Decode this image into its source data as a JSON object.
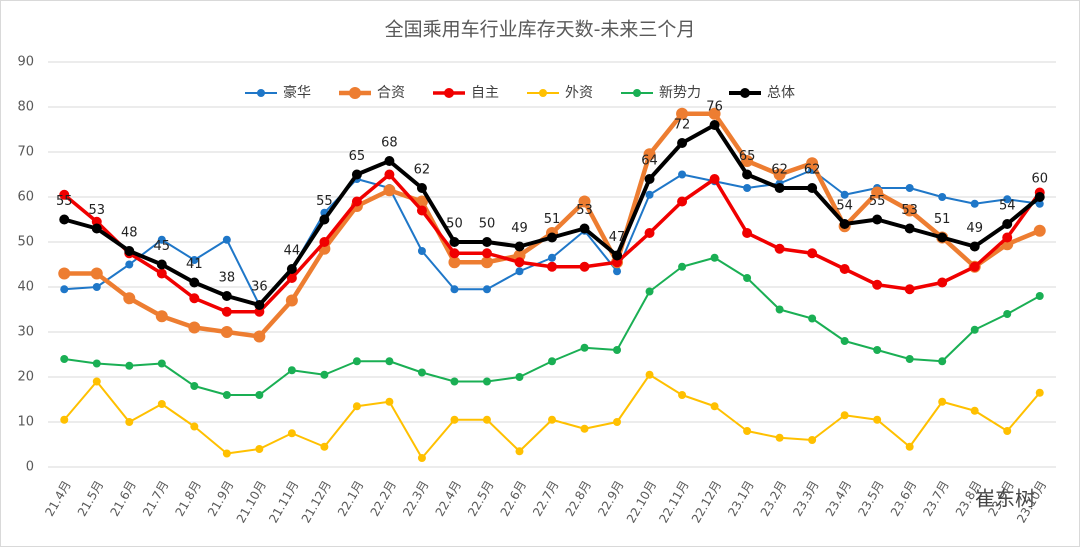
{
  "chart_data": {
    "type": "line",
    "title": "全国乘用车行业库存天数-未来三个月",
    "categories": [
      "21.4月",
      "21.5月",
      "21.6月",
      "21.7月",
      "21.8月",
      "21.9月",
      "21.10月",
      "21.11月",
      "21.12月",
      "22.1月",
      "22.2月",
      "22.3月",
      "22.4月",
      "22.5月",
      "22.6月",
      "22.7月",
      "22.8月",
      "22.9月",
      "22.10月",
      "22.11月",
      "22.12月",
      "23.1月",
      "23.2月",
      "23.3月",
      "23.4月",
      "23.5月",
      "23.6月",
      "23.7月",
      "23.8月",
      "23.9月",
      "23.10月"
    ],
    "series": [
      {
        "name": "豪华",
        "color": "#1f77c8",
        "width": 2,
        "marker": 4,
        "values": [
          39.5,
          40,
          45,
          50.5,
          46,
          50.5,
          36,
          44,
          56.5,
          64,
          62,
          48,
          39.5,
          39.5,
          43.5,
          46.5,
          52.5,
          43.5,
          60.5,
          65,
          63.5,
          62,
          63,
          66,
          60.5,
          62,
          62,
          60,
          58.5,
          59.5,
          58.5
        ]
      },
      {
        "name": "合资",
        "color": "#ed7d31",
        "width": 4.5,
        "marker": 6,
        "values": [
          43,
          43,
          37.5,
          33.5,
          31,
          30,
          29,
          37,
          48.5,
          58,
          61.5,
          59,
          45.5,
          45.5,
          47,
          52,
          59,
          45.5,
          69.5,
          78.5,
          78.5,
          68,
          65,
          67.5,
          53.5,
          61,
          57,
          51,
          44.5,
          49.5,
          52.5
        ]
      },
      {
        "name": "自主",
        "color": "#f00000",
        "width": 3.5,
        "marker": 5,
        "values": [
          60.5,
          54.5,
          47.5,
          43,
          37.5,
          34.5,
          34.5,
          42,
          50,
          59,
          65,
          57,
          47.5,
          47.5,
          45.5,
          44.5,
          44.5,
          45.5,
          52,
          59,
          64,
          52,
          48.5,
          47.5,
          44,
          40.5,
          39.5,
          41,
          44.5,
          51,
          61
        ]
      },
      {
        "name": "外资",
        "color": "#ffc000",
        "width": 2,
        "marker": 4,
        "values": [
          10.5,
          19,
          10,
          14,
          9,
          3,
          4,
          7.5,
          4.5,
          13.5,
          14.5,
          2,
          10.5,
          10.5,
          3.5,
          10.5,
          8.5,
          10,
          20.5,
          16,
          13.5,
          8,
          6.5,
          6,
          11.5,
          10.5,
          4.5,
          14.5,
          12.5,
          8,
          16.5
        ]
      },
      {
        "name": "新势力",
        "color": "#1aaf54",
        "width": 2,
        "marker": 4,
        "values": [
          24,
          23,
          22.5,
          23,
          18,
          16,
          16,
          21.5,
          20.5,
          23.5,
          23.5,
          21,
          19,
          19,
          20,
          23.5,
          26.5,
          26,
          39,
          44.5,
          46.5,
          42,
          35,
          33,
          28,
          26,
          24,
          23.5,
          30.5,
          34,
          38
        ]
      },
      {
        "name": "总体",
        "color": "#000000",
        "width": 4,
        "marker": 5,
        "data_labels": true,
        "values": [
          55,
          53,
          48,
          45,
          41,
          38,
          36,
          44,
          55,
          65,
          68,
          62,
          50,
          50,
          49,
          51,
          53,
          47,
          64,
          72,
          76,
          65,
          62,
          62,
          54,
          55,
          53,
          51,
          49,
          54,
          60
        ]
      }
    ],
    "ylim": [
      0,
      90
    ],
    "yticks": [
      0,
      10,
      20,
      30,
      40,
      50,
      60,
      70,
      80,
      90
    ],
    "grid": true,
    "legend": "top"
  },
  "watermark": "崔东树"
}
